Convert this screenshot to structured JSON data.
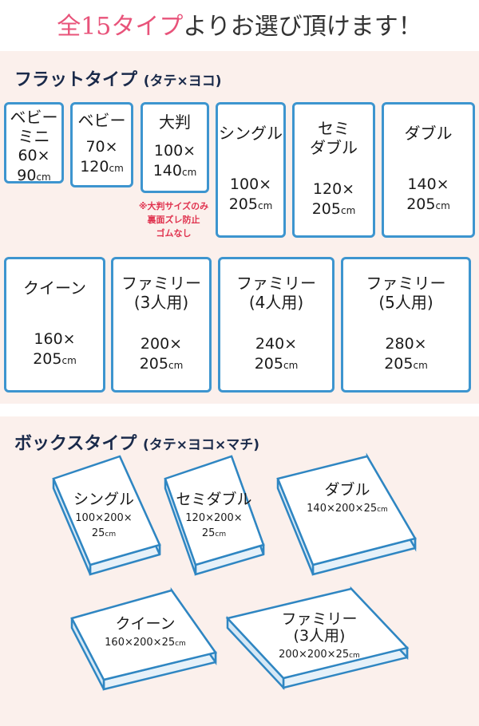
{
  "title": {
    "highlight": "全15タイプ",
    "rest": "よりお選び頂けます！"
  },
  "flat": {
    "heading": "フラットタイプ",
    "dims": "(タテ×ヨコ)",
    "items": [
      {
        "name_lines": [
          "ベビー",
          "ミニ"
        ],
        "size_lines": [
          "60×",
          "90"
        ],
        "unit": "cm"
      },
      {
        "name_lines": [
          "ベビー"
        ],
        "size_lines": [
          "70×",
          "120"
        ],
        "unit": "cm"
      },
      {
        "name_lines": [
          "大判"
        ],
        "size_lines": [
          "100×",
          "140"
        ],
        "unit": "cm"
      },
      {
        "name_lines": [
          "シングル"
        ],
        "size_lines": [
          "100×",
          "205"
        ],
        "unit": "cm"
      },
      {
        "name_lines": [
          "セミ",
          "ダブル"
        ],
        "size_lines": [
          "120×",
          "205"
        ],
        "unit": "cm"
      },
      {
        "name_lines": [
          "ダブル"
        ],
        "size_lines": [
          "140×",
          "205"
        ],
        "unit": "cm"
      },
      {
        "name_lines": [
          "クイーン"
        ],
        "size_lines": [
          "160×",
          "205"
        ],
        "unit": "cm"
      },
      {
        "name_lines": [
          "ファミリー",
          "(3人用)"
        ],
        "size_lines": [
          "200×",
          "205"
        ],
        "unit": "cm"
      },
      {
        "name_lines": [
          "ファミリー",
          "(4人用)"
        ],
        "size_lines": [
          "240×",
          "205"
        ],
        "unit": "cm"
      },
      {
        "name_lines": [
          "ファミリー",
          "(5人用)"
        ],
        "size_lines": [
          "280×",
          "205"
        ],
        "unit": "cm"
      }
    ],
    "note": [
      "※大判サイズのみ",
      "裏面ズレ防止",
      "ゴムなし"
    ]
  },
  "box": {
    "heading": "ボックスタイプ",
    "dims": "(タテ×ヨコ×マチ)",
    "items": [
      {
        "name_lines": [
          "シングル"
        ],
        "size_lines": [
          "100×200×",
          "25"
        ],
        "unit": "cm"
      },
      {
        "name_lines": [
          "セミダブル"
        ],
        "size_lines": [
          "120×200×",
          "25"
        ],
        "unit": "cm"
      },
      {
        "name_lines": [
          "ダブル"
        ],
        "size_lines": [
          "140×200×25"
        ],
        "unit": "cm"
      },
      {
        "name_lines": [
          "クイーン"
        ],
        "size_lines": [
          "160×200×25"
        ],
        "unit": "cm"
      },
      {
        "name_lines": [
          "ファミリー",
          "(3人用)"
        ],
        "size_lines": [
          "200×200×25"
        ],
        "unit": "cm"
      }
    ]
  }
}
